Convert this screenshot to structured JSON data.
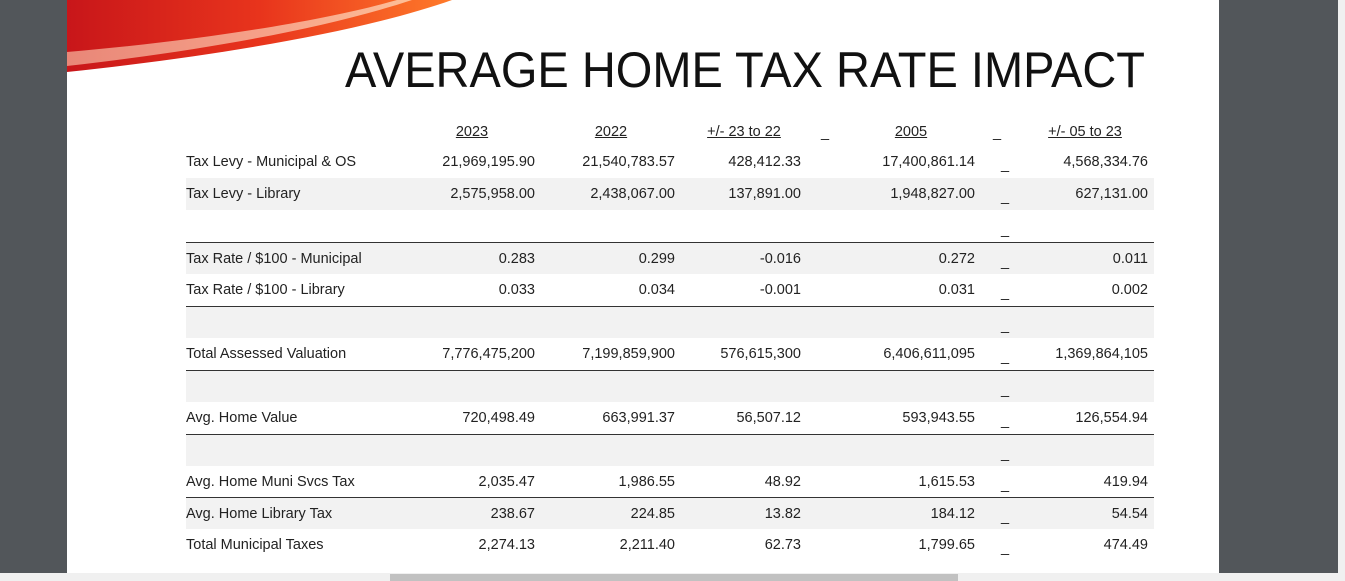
{
  "title": "AVERAGE HOME TAX RATE IMPACT",
  "table": {
    "header": {
      "columns": [
        "2023",
        "2022",
        "+/- 23 to 22",
        "2005",
        "+/- 05 to 23"
      ],
      "markers": [
        "_",
        "_"
      ]
    },
    "rows": [
      {
        "label": "Tax Levy - Municipal & OS",
        "values": [
          "21,969,195.90",
          "21,540,783.57",
          "428,412.33",
          "17,400,861.14",
          "4,568,334.76"
        ],
        "marker": "_"
      },
      {
        "label": "Tax Levy - Library",
        "values": [
          "2,575,958.00",
          "2,438,067.00",
          "137,891.00",
          "1,948,827.00",
          "627,131.00"
        ],
        "marker": "_"
      },
      {
        "marker": "_"
      },
      {
        "label": "Tax Rate / $100 - Municipal",
        "values": [
          "0.283",
          "0.299",
          "-0.016",
          "0.272",
          "0.011"
        ],
        "marker": "_"
      },
      {
        "label": "Tax Rate / $100 - Library",
        "values": [
          "0.033",
          "0.034",
          "-0.001",
          "0.031",
          "0.002"
        ],
        "marker": "_"
      },
      {
        "marker": "_"
      },
      {
        "label": "Total Assessed Valuation",
        "values": [
          "7,776,475,200",
          "7,199,859,900",
          "576,615,300",
          "6,406,611,095",
          "1,369,864,105"
        ],
        "marker": "_"
      },
      {
        "marker": "_"
      },
      {
        "label": "Avg. Home Value",
        "values": [
          "720,498.49",
          "663,991.37",
          "56,507.12",
          "593,943.55",
          "126,554.94"
        ],
        "marker": "_"
      },
      {
        "marker": "_"
      },
      {
        "label": "Avg. Home Muni Svcs Tax",
        "values": [
          "2,035.47",
          "1,986.55",
          "48.92",
          "1,615.53",
          "419.94"
        ],
        "marker": "_"
      },
      {
        "label": "Avg. Home Library Tax",
        "values": [
          "238.67",
          "224.85",
          "13.82",
          "184.12",
          "54.54"
        ],
        "marker": "_"
      },
      {
        "label": "Total Municipal Taxes",
        "values": [
          "2,274.13",
          "2,211.40",
          "62.73",
          "1,799.65",
          "474.49"
        ],
        "marker": "_"
      }
    ]
  }
}
